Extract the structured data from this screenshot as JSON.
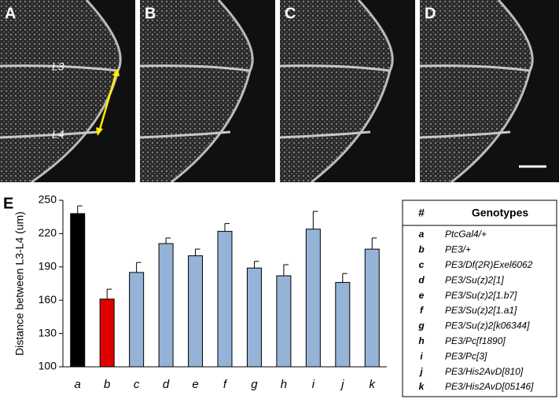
{
  "panels": [
    {
      "label": "A"
    },
    {
      "label": "B"
    },
    {
      "label": "C"
    },
    {
      "label": "D"
    }
  ],
  "vein_labels": [
    "L3",
    "L4"
  ],
  "chart_data": {
    "type": "bar",
    "panel_label": "E",
    "ylabel": "Distance between L3-L4 (um)",
    "categories": [
      "a",
      "b",
      "c",
      "d",
      "e",
      "f",
      "g",
      "h",
      "i",
      "j",
      "k"
    ],
    "series": [
      {
        "values": [
          238,
          161,
          185,
          211,
          200,
          222,
          189,
          182,
          224,
          176,
          206
        ],
        "errors": [
          7,
          9,
          9,
          5,
          6,
          7,
          6,
          10,
          16,
          8,
          10
        ],
        "colors": [
          "#000000",
          "#e00000",
          "#95b3d7",
          "#95b3d7",
          "#95b3d7",
          "#95b3d7",
          "#95b3d7",
          "#95b3d7",
          "#95b3d7",
          "#95b3d7",
          "#95b3d7"
        ]
      }
    ],
    "ylim": [
      100,
      250
    ],
    "yticks": [
      100,
      130,
      160,
      190,
      220,
      250
    ]
  },
  "table": {
    "header": [
      "#",
      "Genotypes"
    ],
    "rows": [
      [
        "a",
        "PtcGal4/+"
      ],
      [
        "b",
        "PE3/+"
      ],
      [
        "c",
        "PE3/Df(2R)Exel6062"
      ],
      [
        "d",
        "PE3/Su(z)2[1]"
      ],
      [
        "e",
        "PE3/Su(z)2[1.b7]"
      ],
      [
        "f",
        "PE3/Su(z)2[1.a1]"
      ],
      [
        "g",
        "PE3/Su(z)2[k06344]"
      ],
      [
        "h",
        "PE3/Pc[f1890]"
      ],
      [
        "i",
        "PE3/Pc[3]"
      ],
      [
        "j",
        "PE3/His2AvD[810]"
      ],
      [
        "k",
        "PE3/His2AvD[05146]"
      ]
    ]
  }
}
